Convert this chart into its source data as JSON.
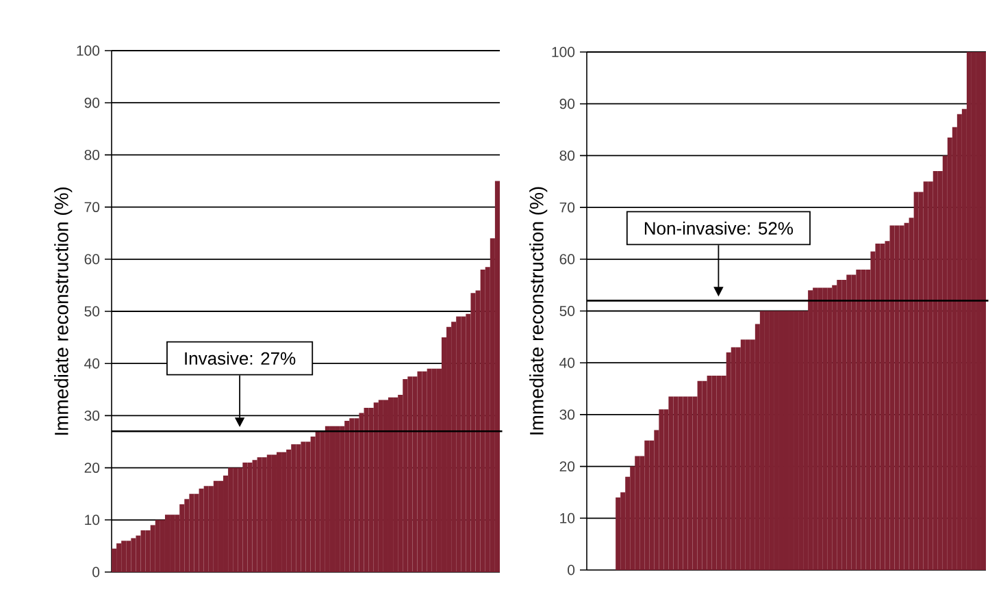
{
  "chart_data": [
    {
      "type": "bar",
      "ylabel": "Immediate reconstruction (%)",
      "color": "#7f2232",
      "categories": [
        null,
        null,
        null,
        null,
        null,
        null,
        null,
        null,
        null,
        null,
        null,
        null,
        null,
        null,
        null,
        null,
        null,
        null,
        null,
        null,
        null,
        null,
        null,
        null,
        null,
        null,
        null,
        null,
        null,
        null,
        null,
        null,
        null,
        null,
        null,
        null,
        null,
        null,
        null,
        null,
        null,
        null,
        null,
        null,
        null,
        null,
        null,
        null,
        null,
        null,
        null,
        null,
        null,
        null,
        null,
        null,
        null,
        null,
        null,
        null,
        null,
        null,
        null,
        null,
        null,
        null,
        null,
        null,
        null,
        null,
        null,
        null,
        null,
        null,
        null,
        null,
        null,
        null,
        null,
        null
      ],
      "values": [
        4.5,
        5.5,
        6,
        6,
        6.5,
        7,
        8,
        8,
        9,
        10,
        10,
        11,
        11,
        11,
        13,
        14,
        15,
        15,
        16,
        16.5,
        16.5,
        17.5,
        17.5,
        18.5,
        20,
        20,
        20,
        21,
        21,
        21.5,
        22,
        22,
        22.5,
        22.5,
        23,
        23,
        23.5,
        24.5,
        24.5,
        25,
        25,
        26,
        27,
        27,
        28,
        28,
        28,
        28,
        29,
        29.5,
        29.5,
        30.5,
        31.5,
        31.5,
        32.5,
        33,
        33,
        33.5,
        33.5,
        34,
        37,
        37.5,
        37.5,
        38.5,
        38.5,
        39,
        39,
        39,
        45,
        47,
        48,
        49,
        49,
        49.5,
        53.5,
        54,
        58,
        58.5,
        64,
        75
      ],
      "ylim": [
        0,
        100
      ],
      "yticks": [
        0,
        10,
        20,
        30,
        40,
        50,
        60,
        70,
        80,
        90,
        100
      ],
      "grid": "y",
      "tick_labels": "y",
      "ref_lines": [
        {
          "axis": "y",
          "value": 27,
          "label": "Invasive: 27%"
        }
      ]
    },
    {
      "type": "bar",
      "ylabel": "Immediate reconstruction (%)",
      "color": "#7f2232",
      "categories": [
        null,
        null,
        null,
        null,
        null,
        null,
        null,
        null,
        null,
        null,
        null,
        null,
        null,
        null,
        null,
        null,
        null,
        null,
        null,
        null,
        null,
        null,
        null,
        null,
        null,
        null,
        null,
        null,
        null,
        null,
        null,
        null,
        null,
        null,
        null,
        null,
        null,
        null,
        null,
        null,
        null,
        null,
        null,
        null,
        null,
        null,
        null,
        null,
        null,
        null,
        null,
        null,
        null,
        null,
        null,
        null,
        null,
        null,
        null,
        null,
        null,
        null,
        null,
        null,
        null,
        null,
        null,
        null,
        null,
        null,
        null,
        null,
        null,
        null,
        null,
        null,
        null,
        null,
        null,
        null,
        null,
        null,
        null
      ],
      "values": [
        0,
        0,
        0,
        0,
        0,
        0,
        14,
        15,
        18,
        20,
        22,
        22,
        25,
        25,
        27,
        31,
        31,
        33.5,
        33.5,
        33.5,
        33.5,
        33.5,
        33.5,
        36.5,
        36.5,
        37.5,
        37.5,
        37.5,
        37.5,
        42,
        43,
        43,
        44.5,
        44.5,
        44.5,
        47.5,
        50,
        50,
        50,
        50,
        50,
        50,
        50,
        50,
        50,
        50,
        54,
        54.5,
        54.5,
        54.5,
        54.5,
        55,
        56,
        56,
        57,
        57,
        58,
        58,
        58,
        61.5,
        63,
        63,
        63.5,
        66.5,
        66.5,
        66.5,
        67,
        68,
        73,
        73,
        75,
        75,
        77,
        77,
        80,
        83.5,
        85.5,
        88,
        89,
        100,
        100,
        100,
        100
      ],
      "ylim": [
        0,
        100
      ],
      "yticks": [
        0,
        10,
        20,
        30,
        40,
        50,
        60,
        70,
        80,
        90,
        100
      ],
      "grid": "y",
      "tick_labels": "y",
      "ref_lines": [
        {
          "axis": "y",
          "value": 52,
          "label": "Non-invasive: 52%"
        }
      ]
    }
  ]
}
